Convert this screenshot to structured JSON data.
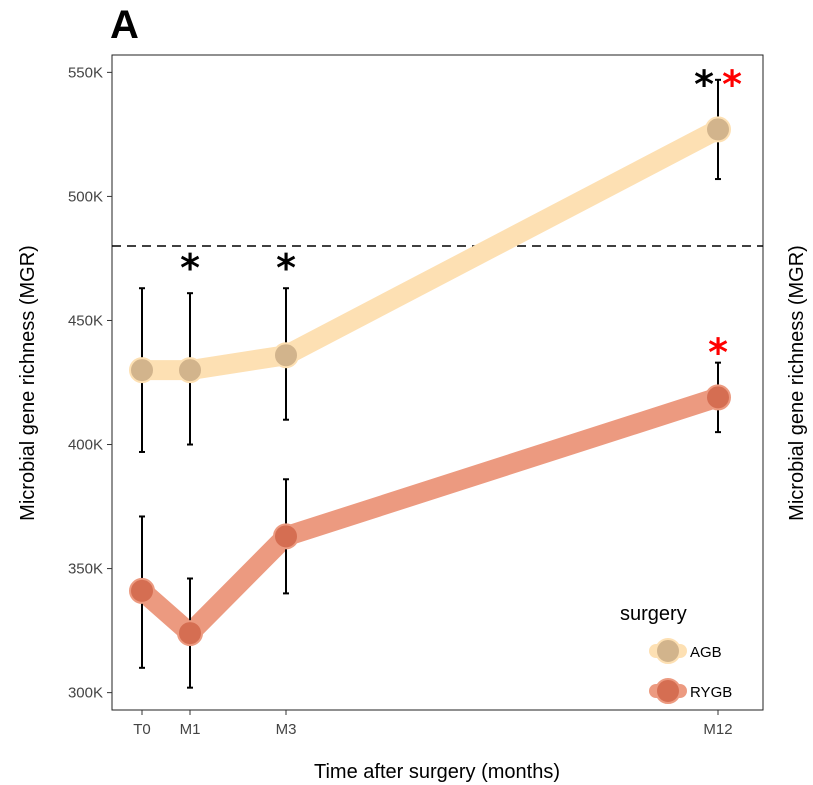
{
  "panel_label": "A",
  "chart_data": {
    "type": "line",
    "x_categories": [
      {
        "label": "T0",
        "month": 0
      },
      {
        "label": "M1",
        "month": 1
      },
      {
        "label": "M3",
        "month": 3
      },
      {
        "label": "M12",
        "month": 12
      }
    ],
    "xlabel": "Time after surgery (months)",
    "ylabel": "Microbial gene richness (MGR)",
    "ylabel_right": "Microbial gene richness (MGR)",
    "ylim": [
      293000,
      557000
    ],
    "yticks": [
      300000,
      350000,
      400000,
      450000,
      500000,
      550000
    ],
    "ytick_labels": [
      "300K",
      "350K",
      "400K",
      "450K",
      "500K",
      "550K"
    ],
    "reference_line": {
      "y": 480000,
      "style": "dashed"
    },
    "legend": {
      "title": "surgery",
      "position": "bottom-right"
    },
    "grid": false,
    "series": [
      {
        "name": "AGB",
        "line_color": "#fde0b3",
        "point_color": "#d2b48c",
        "values": [
          430000,
          430000,
          436000,
          527000
        ],
        "err_low": [
          397000,
          400000,
          410000,
          507000
        ],
        "err_high": [
          463000,
          461000,
          463000,
          547000
        ]
      },
      {
        "name": "RYGB",
        "line_color": "#ec9a80",
        "point_color": "#d56e52",
        "values": [
          341000,
          324000,
          363000,
          419000
        ],
        "err_low": [
          310000,
          302000,
          340000,
          405000
        ],
        "err_high": [
          371000,
          346000,
          386000,
          433000
        ]
      }
    ],
    "annotations": [
      {
        "text": "*",
        "month": 1,
        "y": 474000,
        "color": "#000000"
      },
      {
        "text": "*",
        "month": 3,
        "y": 474000,
        "color": "#000000"
      },
      {
        "text": "*",
        "month": 12,
        "y": 548000,
        "color": "#000000",
        "offset": -1
      },
      {
        "text": "*",
        "month": 12,
        "y": 548000,
        "color": "#ff0000",
        "offset": 1
      },
      {
        "text": "*",
        "month": 12,
        "y": 440000,
        "color": "#ff0000",
        "offset": 0
      }
    ]
  }
}
